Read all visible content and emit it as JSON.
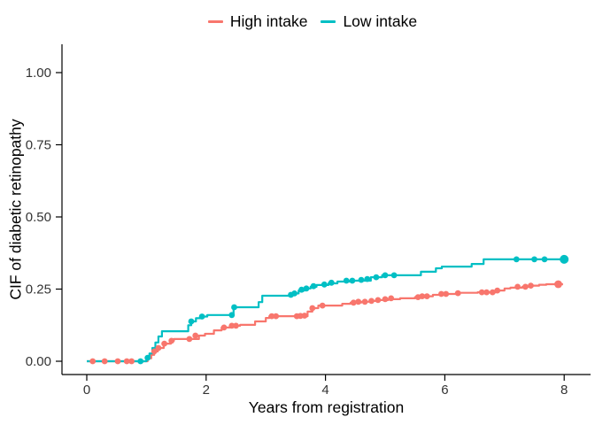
{
  "legend": {
    "items": [
      {
        "label": "High intake",
        "color": "#F8766D"
      },
      {
        "label": "Low intake",
        "color": "#00BFC4"
      }
    ]
  },
  "axes": {
    "x_title": "Years from registration",
    "y_title": "CIF of diabetic retinopathy",
    "axis_color": "#000000",
    "tick_label_color": "#333333"
  },
  "chart_data": {
    "type": "line",
    "subtype": "step-cumulative-incidence",
    "title": "",
    "xlabel": "Years from registration",
    "ylabel": "CIF of diabetic retinopathy",
    "xlim": [
      0,
      8.45
    ],
    "ylim": [
      0,
      1.0
    ],
    "xticks": [
      "0",
      "2",
      "4",
      "6",
      "8"
    ],
    "xtick_values": [
      0,
      2,
      4,
      6,
      8
    ],
    "yticks": [
      "0.00",
      "0.25",
      "0.50",
      "0.75",
      "1.00"
    ],
    "ytick_values": [
      0,
      0.25,
      0.5,
      0.75,
      1.0
    ],
    "grid": false,
    "legend_position": "top",
    "series": [
      {
        "name": "High intake",
        "color": "#F8766D",
        "final_value": 0.27,
        "steps": [
          [
            0,
            0
          ],
          [
            1.02,
            0.01
          ],
          [
            1.08,
            0.022
          ],
          [
            1.13,
            0.034
          ],
          [
            1.19,
            0.046
          ],
          [
            1.29,
            0.061
          ],
          [
            1.41,
            0.071
          ],
          [
            1.46,
            0.077
          ],
          [
            1.88,
            0.089
          ],
          [
            1.98,
            0.095
          ],
          [
            2.13,
            0.107
          ],
          [
            2.26,
            0.117
          ],
          [
            2.42,
            0.123
          ],
          [
            2.57,
            0.126
          ],
          [
            2.82,
            0.138
          ],
          [
            3.0,
            0.15
          ],
          [
            3.06,
            0.156
          ],
          [
            3.7,
            0.172
          ],
          [
            3.78,
            0.184
          ],
          [
            3.88,
            0.193
          ],
          [
            4.28,
            0.199
          ],
          [
            4.42,
            0.203
          ],
          [
            4.6,
            0.206
          ],
          [
            4.75,
            0.209
          ],
          [
            4.9,
            0.212
          ],
          [
            5.05,
            0.215
          ],
          [
            5.25,
            0.218
          ],
          [
            5.5,
            0.222
          ],
          [
            5.65,
            0.225
          ],
          [
            5.8,
            0.23
          ],
          [
            5.97,
            0.233
          ],
          [
            6.25,
            0.237
          ],
          [
            6.55,
            0.239
          ],
          [
            6.85,
            0.245
          ],
          [
            7.0,
            0.252
          ],
          [
            7.1,
            0.255
          ],
          [
            7.3,
            0.258
          ],
          [
            7.45,
            0.262
          ],
          [
            7.58,
            0.265
          ],
          [
            7.7,
            0.267
          ],
          [
            7.98,
            0.267
          ]
        ],
        "censor_marks": [
          [
            0.1,
            0
          ],
          [
            0.3,
            0
          ],
          [
            0.52,
            0
          ],
          [
            0.67,
            0
          ],
          [
            0.75,
            0
          ],
          [
            1.13,
            0.034
          ],
          [
            1.2,
            0.046
          ],
          [
            1.3,
            0.061
          ],
          [
            1.42,
            0.071
          ],
          [
            1.72,
            0.077
          ],
          [
            1.82,
            0.089
          ],
          [
            2.3,
            0.117
          ],
          [
            2.43,
            0.123
          ],
          [
            2.5,
            0.123
          ],
          [
            3.1,
            0.156
          ],
          [
            3.17,
            0.156
          ],
          [
            3.52,
            0.156
          ],
          [
            3.58,
            0.157
          ],
          [
            3.65,
            0.158
          ],
          [
            3.78,
            0.184
          ],
          [
            3.95,
            0.193
          ],
          [
            4.47,
            0.203
          ],
          [
            4.55,
            0.206
          ],
          [
            4.66,
            0.206
          ],
          [
            4.77,
            0.209
          ],
          [
            4.88,
            0.212
          ],
          [
            5.0,
            0.215
          ],
          [
            5.1,
            0.218
          ],
          [
            5.55,
            0.222
          ],
          [
            5.62,
            0.225
          ],
          [
            5.7,
            0.225
          ],
          [
            5.94,
            0.233
          ],
          [
            6.02,
            0.233
          ],
          [
            6.22,
            0.236
          ],
          [
            6.62,
            0.239
          ],
          [
            6.7,
            0.239
          ],
          [
            6.8,
            0.239
          ],
          [
            6.88,
            0.245
          ],
          [
            7.22,
            0.258
          ],
          [
            7.35,
            0.258
          ],
          [
            7.44,
            0.262
          ]
        ],
        "end_point": [
          7.9,
          0.267
        ]
      },
      {
        "name": "Low intake",
        "color": "#00BFC4",
        "final_value": 0.35,
        "steps": [
          [
            0,
            0
          ],
          [
            1.0,
            0.012
          ],
          [
            1.05,
            0.027
          ],
          [
            1.1,
            0.046
          ],
          [
            1.15,
            0.065
          ],
          [
            1.2,
            0.086
          ],
          [
            1.26,
            0.104
          ],
          [
            1.7,
            0.125
          ],
          [
            1.75,
            0.138
          ],
          [
            1.83,
            0.149
          ],
          [
            1.92,
            0.155
          ],
          [
            2.02,
            0.16
          ],
          [
            2.46,
            0.187
          ],
          [
            2.88,
            0.205
          ],
          [
            2.94,
            0.227
          ],
          [
            3.45,
            0.235
          ],
          [
            3.55,
            0.245
          ],
          [
            3.65,
            0.252
          ],
          [
            3.75,
            0.258
          ],
          [
            3.85,
            0.264
          ],
          [
            4.05,
            0.27
          ],
          [
            4.2,
            0.276
          ],
          [
            4.4,
            0.279
          ],
          [
            4.76,
            0.291
          ],
          [
            4.95,
            0.298
          ],
          [
            5.6,
            0.31
          ],
          [
            5.85,
            0.322
          ],
          [
            5.95,
            0.328
          ],
          [
            6.45,
            0.337
          ],
          [
            6.65,
            0.353
          ],
          [
            8.05,
            0.353
          ]
        ],
        "censor_marks": [
          [
            0.9,
            0
          ],
          [
            1.02,
            0.012
          ],
          [
            1.75,
            0.138
          ],
          [
            1.93,
            0.155
          ],
          [
            2.43,
            0.16
          ],
          [
            2.47,
            0.187
          ],
          [
            3.42,
            0.23
          ],
          [
            3.48,
            0.235
          ],
          [
            3.6,
            0.248
          ],
          [
            3.68,
            0.252
          ],
          [
            3.8,
            0.26
          ],
          [
            3.98,
            0.266
          ],
          [
            4.1,
            0.272
          ],
          [
            4.35,
            0.279
          ],
          [
            4.45,
            0.279
          ],
          [
            4.6,
            0.282
          ],
          [
            4.7,
            0.285
          ],
          [
            4.85,
            0.291
          ],
          [
            5.0,
            0.298
          ],
          [
            5.15,
            0.298
          ],
          [
            7.2,
            0.353
          ],
          [
            7.5,
            0.353
          ],
          [
            7.67,
            0.353
          ]
        ],
        "end_point": [
          8.0,
          0.353
        ]
      }
    ]
  }
}
